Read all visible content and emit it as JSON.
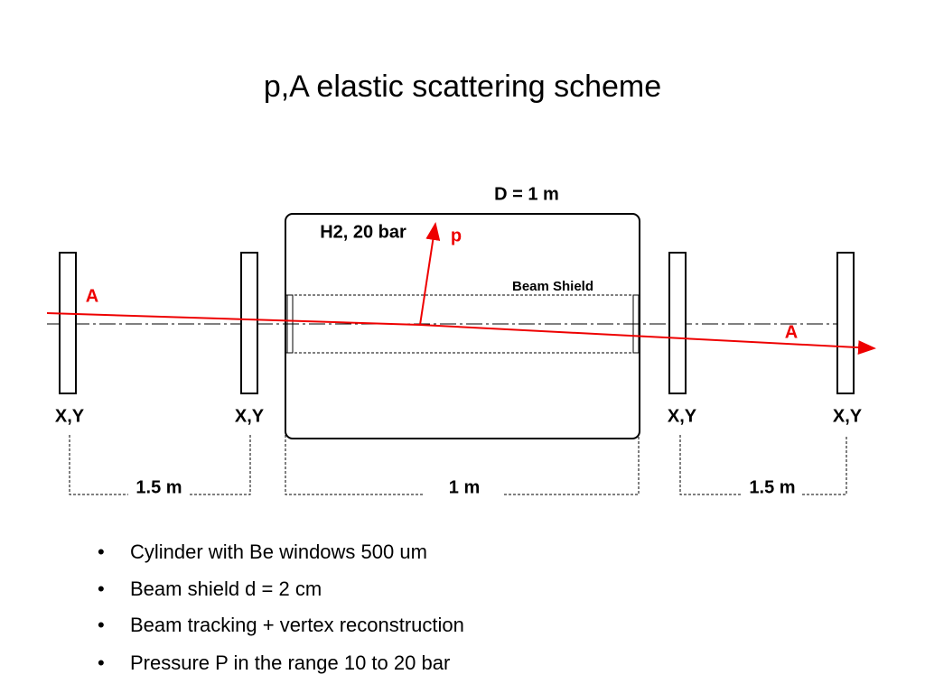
{
  "title": "p,A elastic scattering scheme",
  "diagram": {
    "length_label": "D = 1 m",
    "gas_label": "H2, 20 bar",
    "proton_label": "p",
    "shield_label": "Beam Shield",
    "beam_in_label": "A",
    "beam_out_label": "A",
    "detectors": [
      "X,Y",
      "X,Y",
      "X,Y",
      "X,Y"
    ],
    "distances": [
      "1.5 m",
      "1 m",
      "1.5 m"
    ]
  },
  "bullets": [
    "Cylinder with Be windows 500 um",
    "Beam shield d = 2 cm",
    "Beam tracking + vertex reconstruction",
    "Pressure P in the range 10 to 20 bar"
  ]
}
